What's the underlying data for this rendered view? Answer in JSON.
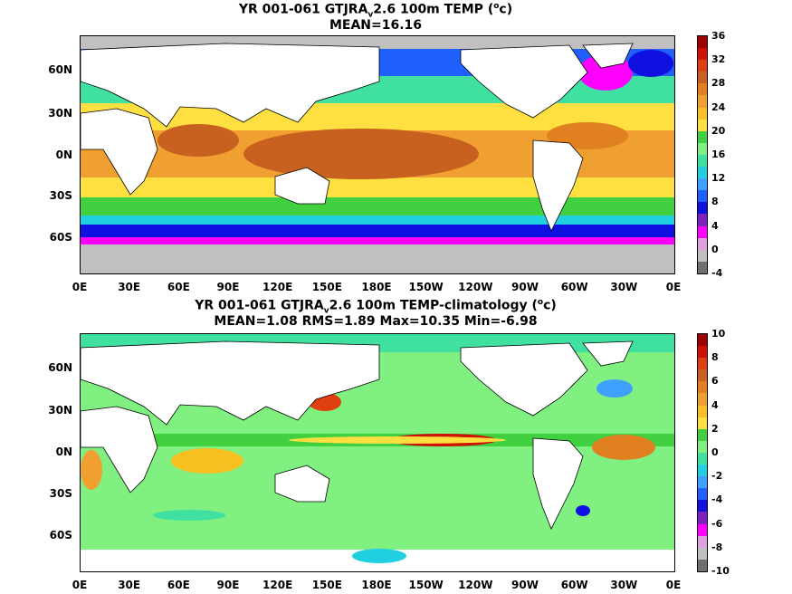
{
  "top_panel": {
    "title_pre": "YR 001-061 GTJRA",
    "title_sub": "v",
    "title_mid": "2.6 100m TEMP (",
    "title_sup": "o",
    "title_post": "c)",
    "subtitle": "MEAN=16.16",
    "lat_labels": [
      "60N",
      "30N",
      "0N",
      "30S",
      "60S"
    ],
    "lon_labels": [
      "0E",
      "30E",
      "60E",
      "90E",
      "120E",
      "150E",
      "180E",
      "150W",
      "120W",
      "90W",
      "60W",
      "30W",
      "0E"
    ],
    "colorbar_ticks": [
      "36",
      "32",
      "28",
      "24",
      "20",
      "16",
      "12",
      "8",
      "4",
      "0",
      "-4"
    ],
    "colorbar_colors": [
      "#a00000",
      "#d01000",
      "#e04010",
      "#c86020",
      "#e08020",
      "#f0a030",
      "#f8c020",
      "#ffe040",
      "#40d040",
      "#80f080",
      "#40e0a0",
      "#20d0e0",
      "#40a0ff",
      "#2060ff",
      "#1010e0",
      "#8020c0",
      "#ff00ff",
      "#e0a0e0",
      "#c0c0c0",
      "#707070"
    ]
  },
  "bottom_panel": {
    "title_pre": "YR 001-061 GTJRA",
    "title_sub": "v",
    "title_mid": "2.6 100m TEMP-climatology (",
    "title_sup": "o",
    "title_post": "c)",
    "subtitle": "MEAN=1.08   RMS=1.89   Max=10.35   Min=-6.98",
    "lat_labels": [
      "60N",
      "30N",
      "0N",
      "30S",
      "60S"
    ],
    "lon_labels": [
      "0E",
      "30E",
      "60E",
      "90E",
      "120E",
      "150E",
      "180E",
      "150W",
      "120W",
      "90W",
      "60W",
      "30W",
      "0E"
    ],
    "colorbar_ticks": [
      "10",
      "8",
      "6",
      "4",
      "2",
      "0",
      "-2",
      "-4",
      "-6",
      "-8",
      "-10"
    ],
    "colorbar_colors": [
      "#a00000",
      "#d01000",
      "#e04010",
      "#c86020",
      "#e08020",
      "#f0a030",
      "#f8c020",
      "#ffe040",
      "#40d040",
      "#80f080",
      "#40e0a0",
      "#20d0e0",
      "#40a0ff",
      "#2060ff",
      "#1010e0",
      "#8020c0",
      "#ff00ff",
      "#e0a0e0",
      "#c0c0c0",
      "#707070"
    ]
  }
}
